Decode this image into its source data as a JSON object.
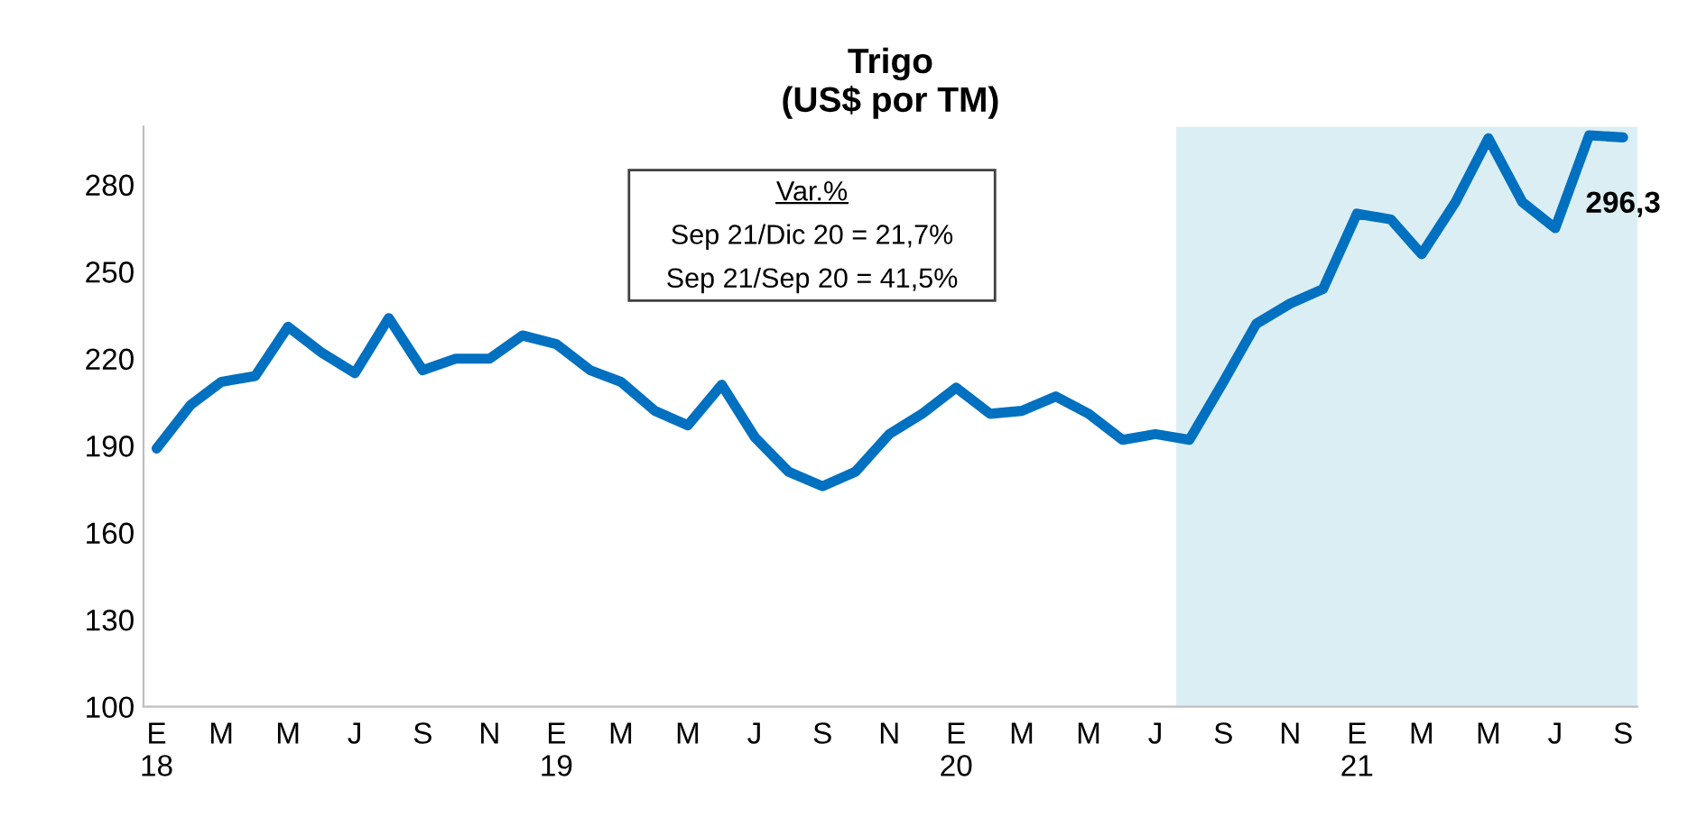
{
  "chart_data": {
    "type": "line",
    "title": "Trigo\n(US$ por TM)",
    "x": [
      "2018-01",
      "2018-02",
      "2018-03",
      "2018-04",
      "2018-05",
      "2018-06",
      "2018-07",
      "2018-08",
      "2018-09",
      "2018-10",
      "2018-11",
      "2018-12",
      "2019-01",
      "2019-02",
      "2019-03",
      "2019-04",
      "2019-05",
      "2019-06",
      "2019-07",
      "2019-08",
      "2019-09",
      "2019-10",
      "2019-11",
      "2019-12",
      "2020-01",
      "2020-02",
      "2020-03",
      "2020-04",
      "2020-05",
      "2020-06",
      "2020-07",
      "2020-08",
      "2020-09",
      "2020-10",
      "2020-11",
      "2020-12",
      "2021-01",
      "2021-02",
      "2021-03",
      "2021-04",
      "2021-05",
      "2021-06",
      "2021-07",
      "2021-08",
      "2021-09"
    ],
    "series": [
      {
        "color": "#0070c0",
        "values": [
          189,
          204,
          212,
          214,
          231,
          222,
          215,
          234,
          216,
          220,
          220,
          228,
          225,
          216,
          212,
          202,
          197,
          211,
          193,
          181,
          176,
          181,
          194,
          201,
          210,
          201,
          202,
          207,
          201,
          192,
          194,
          192,
          212,
          232,
          239,
          244,
          270,
          268,
          256,
          274,
          296,
          274,
          265,
          297,
          296.3
        ],
        "value_labels": [
          null,
          null,
          null,
          null,
          null,
          null,
          null,
          null,
          null,
          null,
          null,
          null,
          null,
          null,
          null,
          null,
          null,
          null,
          null,
          null,
          null,
          null,
          null,
          null,
          null,
          null,
          null,
          null,
          null,
          null,
          null,
          null,
          null,
          null,
          null,
          null,
          null,
          null,
          null,
          null,
          null,
          null,
          null,
          null,
          "296,3"
        ]
      }
    ],
    "xlim": [
      "2017-12-20",
      "2021-09-14"
    ],
    "xticks": [
      {
        "value": "2018-01",
        "label": "E\n18"
      },
      {
        "value": "2018-03",
        "label": "M"
      },
      {
        "value": "2018-05",
        "label": "M"
      },
      {
        "value": "2018-07",
        "label": "J"
      },
      {
        "value": "2018-09",
        "label": "S"
      },
      {
        "value": "2018-11",
        "label": "N"
      },
      {
        "value": "2019-01",
        "label": "E\n19"
      },
      {
        "value": "2019-03",
        "label": "M"
      },
      {
        "value": "2019-05",
        "label": "M"
      },
      {
        "value": "2019-07",
        "label": "J"
      },
      {
        "value": "2019-09",
        "label": "S"
      },
      {
        "value": "2019-11",
        "label": "N"
      },
      {
        "value": "2020-01",
        "label": "E\n20"
      },
      {
        "value": "2020-03",
        "label": "M"
      },
      {
        "value": "2020-05",
        "label": "M"
      },
      {
        "value": "2020-07",
        "label": "J"
      },
      {
        "value": "2020-09",
        "label": "S"
      },
      {
        "value": "2020-11",
        "label": "N"
      },
      {
        "value": "2021-01",
        "label": "E\n21"
      },
      {
        "value": "2021-03",
        "label": "M"
      },
      {
        "value": "2021-05",
        "label": "M"
      },
      {
        "value": "2021-07",
        "label": "J"
      },
      {
        "value": "2021-09",
        "label": "S"
      }
    ],
    "ylim": [
      100,
      300
    ],
    "yticks": [
      100,
      130,
      160,
      190,
      220,
      250,
      280
    ],
    "bands": [
      {
        "axis": "x",
        "from": "2020-07-20",
        "to": "2021-09-14",
        "color": "#daeef3"
      }
    ],
    "annotations": [
      "Var.%",
      "Sep 21/Dic 20 = 21,7%",
      "Sep 21/Sep 20 = 41,5%"
    ],
    "grid": false,
    "legend": false,
    "marker": "none",
    "line_style": "solid"
  }
}
